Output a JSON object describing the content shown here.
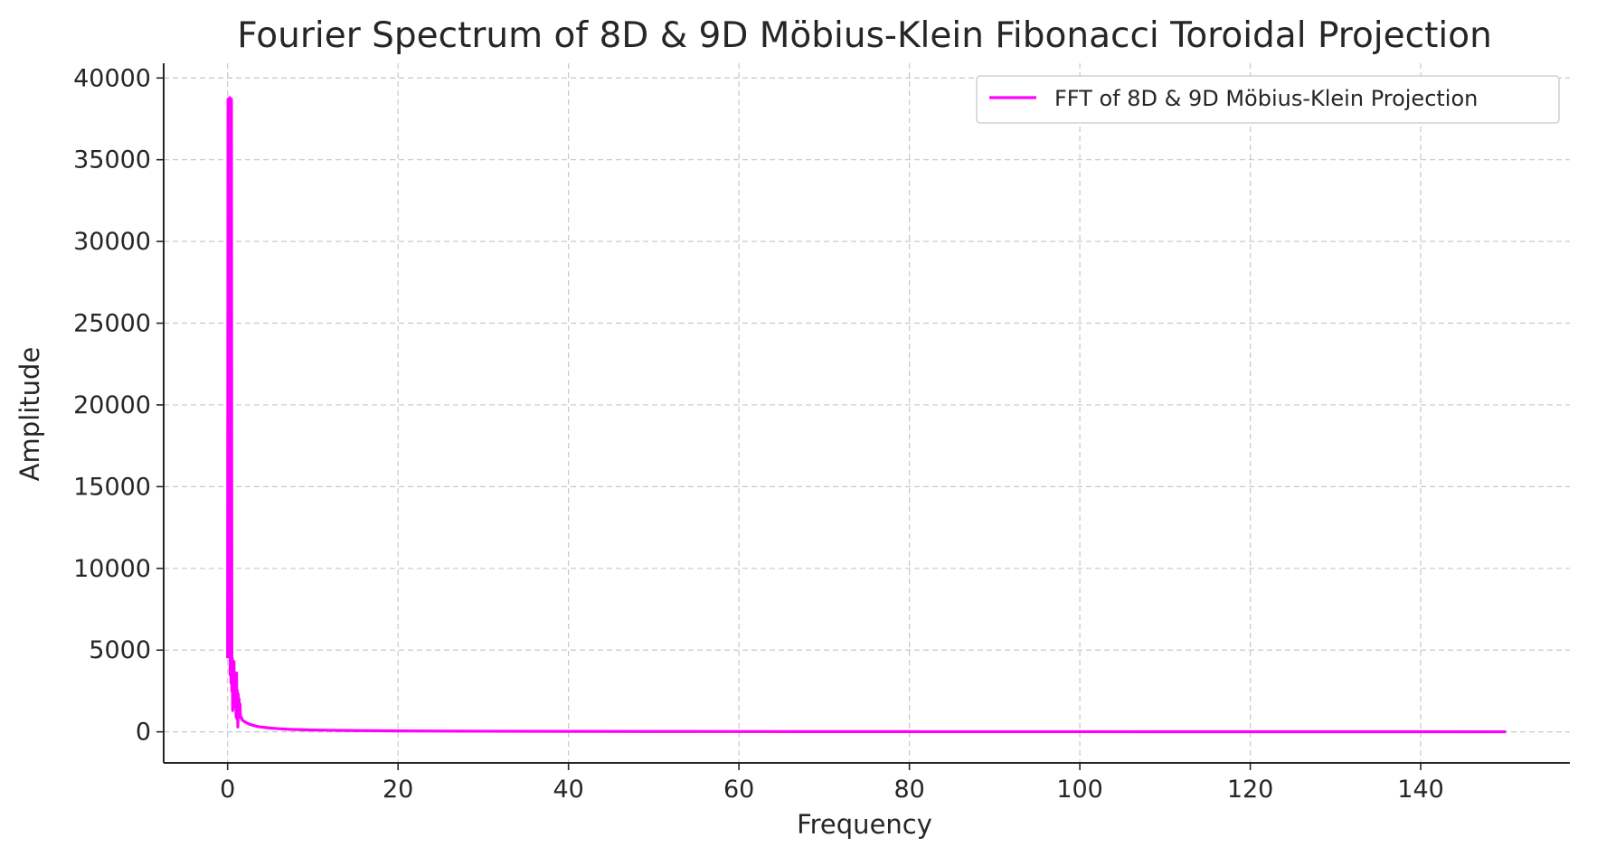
{
  "chart_data": {
    "type": "line",
    "title": "Fourier Spectrum of 8D & 9D Möbius-Klein Fibonacci Toroidal Projection",
    "xlabel": "Frequency",
    "ylabel": "Amplitude",
    "xlim": [
      -7.5,
      157.5
    ],
    "ylim": [
      -1900,
      40900
    ],
    "xticks": [
      0,
      20,
      40,
      60,
      80,
      100,
      120,
      140
    ],
    "yticks": [
      0,
      5000,
      10000,
      15000,
      20000,
      25000,
      30000,
      35000,
      40000
    ],
    "grid": true,
    "legend_position": "top-right",
    "colors": {
      "line": "#ff00ff",
      "grid": "#c8c8c8",
      "spine": "#262626"
    },
    "series": [
      {
        "name": "FFT of 8D & 9D Möbius-Klein Projection",
        "x": [
          0,
          0.05,
          0.1,
          0.15,
          0.2,
          0.25,
          0.3,
          0.35,
          0.4,
          0.45,
          0.5,
          0.55,
          0.6,
          0.65,
          0.7,
          0.75,
          0.8,
          0.85,
          0.9,
          0.95,
          1.0,
          1.05,
          1.1,
          1.15,
          1.2,
          1.25,
          1.3,
          1.35,
          1.4,
          1.45,
          1.5,
          1.6,
          1.7,
          1.8,
          1.9,
          2.0,
          2.2,
          2.5,
          3,
          3.5,
          4,
          5,
          6,
          7,
          8,
          10,
          12,
          15,
          20,
          25,
          30,
          40,
          50,
          60,
          80,
          100,
          120,
          140,
          150
        ],
        "values": [
          4500,
          38700,
          5000,
          38500,
          4800,
          38800,
          3500,
          38600,
          3000,
          38700,
          2500,
          4500,
          1300,
          3800,
          2000,
          4300,
          1500,
          3500,
          1700,
          2800,
          900,
          3600,
          800,
          2500,
          300,
          2300,
          1200,
          2000,
          900,
          1700,
          1000,
          900,
          750,
          700,
          650,
          620,
          560,
          480,
          400,
          330,
          290,
          230,
          190,
          160,
          140,
          110,
          95,
          75,
          55,
          45,
          38,
          28,
          22,
          18,
          13,
          10,
          8,
          6,
          5
        ]
      }
    ]
  }
}
